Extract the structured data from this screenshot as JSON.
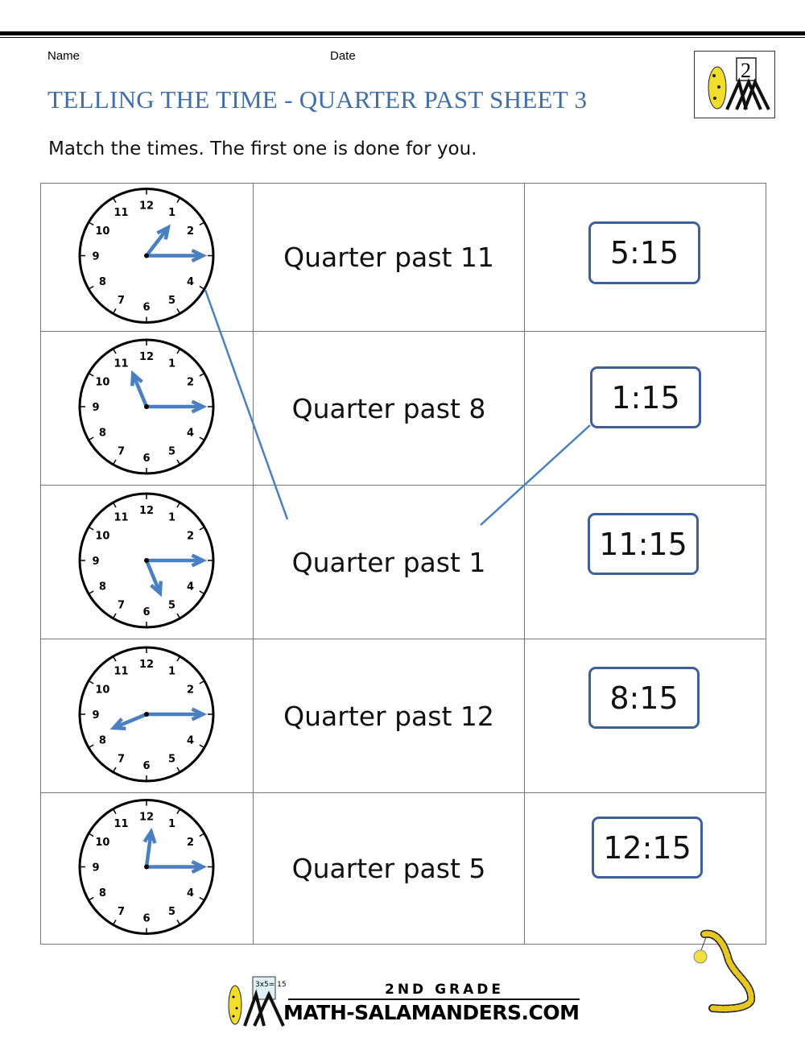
{
  "header": {
    "name_label": "Name",
    "date_label": "Date",
    "title": "TELLING THE TIME - QUARTER PAST SHEET 3",
    "instruction": "Match the times. The first one is done for you.",
    "logo_text": "2"
  },
  "rows": [
    {
      "clock": {
        "hour": 1,
        "minute": 15
      },
      "words": "Quarter past 11",
      "digital": "5:15"
    },
    {
      "clock": {
        "hour": 11,
        "minute": 15
      },
      "words": "Quarter past 8",
      "digital": "1:15"
    },
    {
      "clock": {
        "hour": 5,
        "minute": 15
      },
      "words": "Quarter past 1",
      "digital": "11:15"
    },
    {
      "clock": {
        "hour": 8,
        "minute": 15
      },
      "words": "Quarter past 12",
      "digital": "8:15"
    },
    {
      "clock": {
        "hour": 12,
        "minute": 15
      },
      "words": "Quarter past 5",
      "digital": "12:15"
    }
  ],
  "colors": {
    "title": "#3f6ea8",
    "hands": "#4a7fc1",
    "box_border": "#3d5f9c",
    "match_line": "#4a7fc1"
  },
  "footer": {
    "grade": "2ND GRADE",
    "site": "MATH-SALAMANDERS.COM",
    "board_text": "3x5= 15"
  }
}
